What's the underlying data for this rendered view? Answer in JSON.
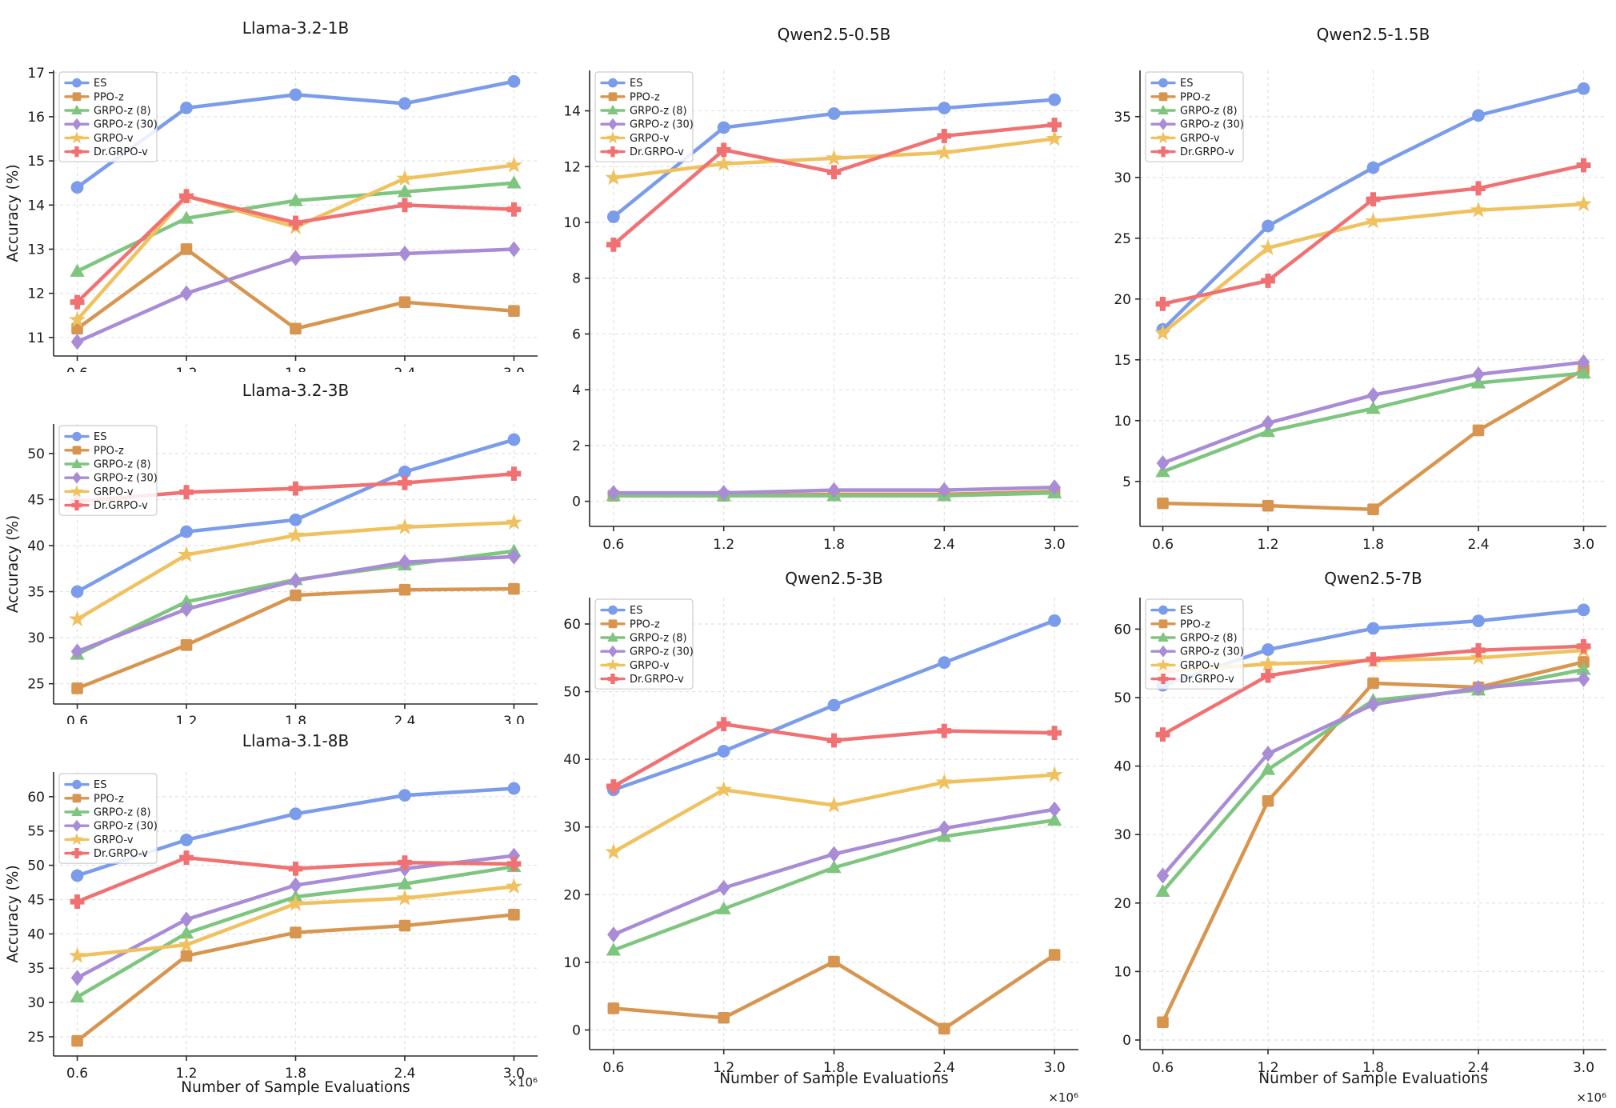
{
  "figure_background": "#ffffff",
  "axes_shared": {
    "x_label": "Number of Sample Evaluations",
    "x_multiplier": "×10⁶",
    "y_label": "Accuracy (%)",
    "x_ticks": [
      "0.6",
      "1.2",
      "1.8",
      "2.4",
      "3.0"
    ],
    "xlim": [
      0.47,
      3.13
    ]
  },
  "legend_entries": [
    "ES",
    "PPO-z",
    "GRPO-z (8)",
    "GRPO-z (30)",
    "GRPO-v",
    "Dr.GRPO-v"
  ],
  "colors": {
    "ES": "#7A9CEA",
    "PPO-z": "#D8954F",
    "GRPO-z (8)": "#7EC57F",
    "GRPO-z (30)": "#A88CD5",
    "GRPO-v": "#F0C15F",
    "Dr.GRPO-v": "#F17173",
    "grid": "#e2e2e2",
    "spine": "#2b2b2b",
    "legend_border": "#cccccc"
  },
  "markers": {
    "ES": "circle",
    "PPO-z": "square",
    "GRPO-z (8)": "triangle",
    "GRPO-z (30)": "diamond",
    "GRPO-v": "star",
    "Dr.GRPO-v": "plus"
  },
  "chart_data": [
    {
      "type": "line",
      "title": "Llama-3.2-1B",
      "column": 0,
      "x": [
        0.6,
        1.2,
        1.8,
        2.4,
        3.0
      ],
      "ylim": [
        10.58,
        17.05
      ],
      "yticks": [
        11,
        12,
        13,
        14,
        15,
        16,
        17
      ],
      "show_y_label": true,
      "show_x_label": false,
      "show_multiplier": false,
      "series": [
        {
          "name": "ES",
          "values": [
            14.4,
            16.2,
            16.5,
            16.3,
            16.8
          ]
        },
        {
          "name": "PPO-z",
          "values": [
            11.2,
            13.0,
            11.2,
            11.8,
            11.6
          ]
        },
        {
          "name": "GRPO-z (8)",
          "values": [
            12.5,
            13.7,
            14.1,
            14.3,
            14.5
          ]
        },
        {
          "name": "GRPO-z (30)",
          "values": [
            10.9,
            12.0,
            12.8,
            12.9,
            13.0
          ]
        },
        {
          "name": "GRPO-v",
          "values": [
            11.4,
            14.2,
            13.5,
            14.6,
            14.9
          ]
        },
        {
          "name": "Dr.GRPO-v",
          "values": [
            11.8,
            14.2,
            13.6,
            14.0,
            13.9
          ]
        }
      ]
    },
    {
      "type": "line",
      "title": "Llama-3.2-3B",
      "column": 0,
      "x": [
        0.6,
        1.2,
        1.8,
        2.4,
        3.0
      ],
      "ylim": [
        22.8,
        53.2
      ],
      "yticks": [
        25,
        30,
        35,
        40,
        45,
        50
      ],
      "show_y_label": true,
      "show_x_label": false,
      "show_multiplier": false,
      "series": [
        {
          "name": "ES",
          "values": [
            35.0,
            41.5,
            42.8,
            48.0,
            51.5
          ]
        },
        {
          "name": "PPO-z",
          "values": [
            24.5,
            29.2,
            34.6,
            35.2,
            35.3
          ]
        },
        {
          "name": "GRPO-z (8)",
          "values": [
            28.2,
            33.9,
            36.3,
            37.9,
            39.4
          ]
        },
        {
          "name": "GRPO-z (30)",
          "values": [
            28.5,
            33.1,
            36.2,
            38.2,
            38.8
          ]
        },
        {
          "name": "GRPO-v",
          "values": [
            32.0,
            39.0,
            41.1,
            42.0,
            42.5
          ]
        },
        {
          "name": "Dr.GRPO-v",
          "values": [
            44.8,
            45.8,
            46.2,
            46.8,
            47.8
          ]
        }
      ]
    },
    {
      "type": "line",
      "title": "Llama-3.1-8B",
      "column": 0,
      "x": [
        0.6,
        1.2,
        1.8,
        2.4,
        3.0
      ],
      "ylim": [
        22.2,
        63.6
      ],
      "yticks": [
        25,
        30,
        35,
        40,
        45,
        50,
        55,
        60
      ],
      "show_y_label": true,
      "show_x_label": true,
      "show_multiplier": true,
      "series": [
        {
          "name": "ES",
          "values": [
            48.5,
            53.7,
            57.5,
            60.2,
            61.2
          ]
        },
        {
          "name": "PPO-z",
          "values": [
            24.4,
            36.8,
            40.2,
            41.2,
            42.8
          ]
        },
        {
          "name": "GRPO-z (8)",
          "values": [
            30.8,
            40.1,
            45.4,
            47.3,
            49.8
          ]
        },
        {
          "name": "GRPO-z (30)",
          "values": [
            33.6,
            42.1,
            47.1,
            49.5,
            51.4
          ]
        },
        {
          "name": "GRPO-v",
          "values": [
            36.8,
            38.4,
            44.4,
            45.2,
            46.9
          ]
        },
        {
          "name": "Dr.GRPO-v",
          "values": [
            44.7,
            51.1,
            49.5,
            50.4,
            50.2
          ]
        }
      ]
    },
    {
      "type": "line",
      "title": "Qwen2.5-0.5B",
      "column": 1,
      "x": [
        0.6,
        1.2,
        1.8,
        2.4,
        3.0
      ],
      "ylim": [
        -0.9,
        15.45
      ],
      "yticks": [
        0,
        2,
        4,
        6,
        8,
        10,
        12,
        14
      ],
      "show_y_label": false,
      "show_x_label": false,
      "show_multiplier": false,
      "series": [
        {
          "name": "ES",
          "values": [
            10.2,
            13.4,
            13.9,
            14.1,
            14.4
          ]
        },
        {
          "name": "PPO-z",
          "values": [
            0.2,
            0.2,
            0.25,
            0.25,
            0.35
          ]
        },
        {
          "name": "GRPO-z (8)",
          "values": [
            0.2,
            0.2,
            0.2,
            0.2,
            0.3
          ]
        },
        {
          "name": "GRPO-z (30)",
          "values": [
            0.3,
            0.3,
            0.4,
            0.4,
            0.5
          ]
        },
        {
          "name": "GRPO-v",
          "values": [
            11.6,
            12.1,
            12.3,
            12.5,
            13.0
          ]
        },
        {
          "name": "Dr.GRPO-v",
          "values": [
            9.2,
            12.6,
            11.8,
            13.1,
            13.5
          ]
        }
      ]
    },
    {
      "type": "line",
      "title": "Qwen2.5-3B",
      "column": 1,
      "x": [
        0.6,
        1.2,
        1.8,
        2.4,
        3.0
      ],
      "ylim": [
        -2.9,
        63.9
      ],
      "yticks": [
        0,
        10,
        20,
        30,
        40,
        50,
        60
      ],
      "show_y_label": false,
      "show_x_label": true,
      "show_multiplier": true,
      "series": [
        {
          "name": "ES",
          "values": [
            35.5,
            41.2,
            48.0,
            54.3,
            60.5
          ]
        },
        {
          "name": "PPO-z",
          "values": [
            3.2,
            1.8,
            10.1,
            0.2,
            11.1
          ]
        },
        {
          "name": "GRPO-z (8)",
          "values": [
            11.8,
            17.9,
            24.0,
            28.6,
            31.0
          ]
        },
        {
          "name": "GRPO-z (30)",
          "values": [
            14.1,
            21.0,
            26.0,
            29.8,
            32.6
          ]
        },
        {
          "name": "GRPO-v",
          "values": [
            26.3,
            35.5,
            33.2,
            36.6,
            37.7
          ]
        },
        {
          "name": "Dr.GRPO-v",
          "values": [
            36.0,
            45.2,
            42.8,
            44.2,
            43.9
          ]
        }
      ]
    },
    {
      "type": "line",
      "title": "Qwen2.5-1.5B",
      "column": 2,
      "x": [
        0.6,
        1.2,
        1.8,
        2.4,
        3.0
      ],
      "ylim": [
        1.3,
        38.8
      ],
      "yticks": [
        5,
        10,
        15,
        20,
        25,
        30,
        35
      ],
      "show_y_label": false,
      "show_x_label": false,
      "show_multiplier": false,
      "series": [
        {
          "name": "ES",
          "values": [
            17.5,
            26.0,
            30.8,
            35.1,
            37.3
          ]
        },
        {
          "name": "PPO-z",
          "values": [
            3.2,
            3.0,
            2.7,
            9.2,
            14.2
          ]
        },
        {
          "name": "GRPO-z (8)",
          "values": [
            5.8,
            9.1,
            11.0,
            13.1,
            13.9
          ]
        },
        {
          "name": "GRPO-z (30)",
          "values": [
            6.5,
            9.8,
            12.1,
            13.8,
            14.8
          ]
        },
        {
          "name": "GRPO-v",
          "values": [
            17.2,
            24.2,
            26.4,
            27.3,
            27.8
          ]
        },
        {
          "name": "Dr.GRPO-v",
          "values": [
            19.6,
            21.5,
            28.2,
            29.1,
            31.0
          ]
        }
      ]
    },
    {
      "type": "line",
      "title": "Qwen2.5-7B",
      "column": 2,
      "x": [
        0.6,
        1.2,
        1.8,
        2.4,
        3.0
      ],
      "ylim": [
        -1.4,
        64.6
      ],
      "yticks": [
        0,
        10,
        20,
        30,
        40,
        50,
        60
      ],
      "show_y_label": false,
      "show_x_label": true,
      "show_multiplier": true,
      "series": [
        {
          "name": "ES",
          "values": [
            51.8,
            57.0,
            60.1,
            61.2,
            62.8
          ]
        },
        {
          "name": "PPO-z",
          "values": [
            2.6,
            34.9,
            52.1,
            51.5,
            55.2
          ]
        },
        {
          "name": "GRPO-z (8)",
          "values": [
            21.7,
            39.5,
            49.6,
            51.1,
            54.1
          ]
        },
        {
          "name": "GRPO-z (30)",
          "values": [
            24.0,
            41.8,
            49.0,
            51.4,
            52.7
          ]
        },
        {
          "name": "GRPO-v",
          "values": [
            53.8,
            54.9,
            55.4,
            55.8,
            56.9
          ]
        },
        {
          "name": "Dr.GRPO-v",
          "values": [
            44.6,
            53.2,
            55.6,
            56.9,
            57.5
          ]
        }
      ]
    }
  ]
}
